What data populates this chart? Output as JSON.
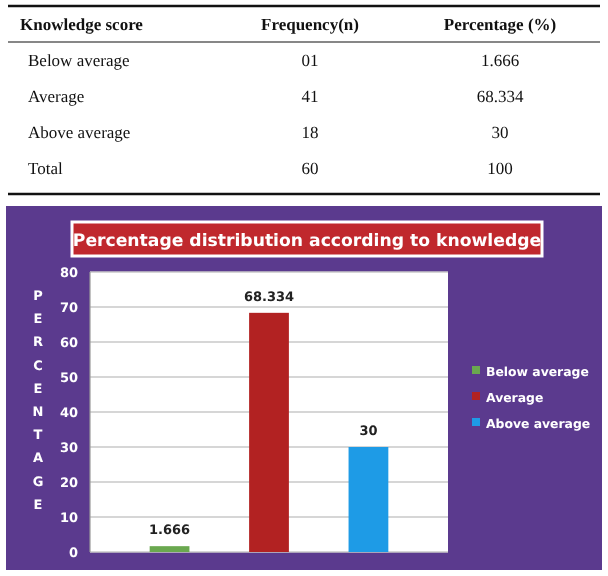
{
  "chart_data": [
    {
      "type": "other",
      "xlabel": "Knowledge score",
      "categories": [
        "Below average",
        "Average",
        "Above average",
        "Total"
      ],
      "series": [
        {
          "name": "Frequency(n)",
          "values": [
            1,
            41,
            18,
            60
          ],
          "value_labels": [
            "01",
            "41",
            "18",
            "60"
          ]
        },
        {
          "name": "Percentage (%)",
          "values": [
            1.666,
            68.334,
            30,
            100
          ],
          "value_labels": [
            "1.666",
            "68.334",
            "30",
            "100"
          ]
        }
      ]
    },
    {
      "type": "bar",
      "title": "Percentage distribution according to knowledge",
      "ylabel": "PERCENTAGE",
      "categories": [
        null,
        null,
        null
      ],
      "series": [
        {
          "name": "Below average",
          "color": "#6aa84f",
          "values": [
            1.666,
            null,
            null
          ]
        },
        {
          "name": "Average",
          "color": "#b22222",
          "values": [
            null,
            68.334,
            null
          ]
        },
        {
          "name": "Above average",
          "color": "#1e9be6",
          "values": [
            null,
            null,
            30
          ]
        }
      ],
      "ylim": [
        0,
        80
      ],
      "yticks": [
        0,
        10,
        20,
        30,
        40,
        50,
        60,
        70,
        80
      ],
      "grid": true,
      "legend": "right",
      "data_labels": true
    }
  ]
}
